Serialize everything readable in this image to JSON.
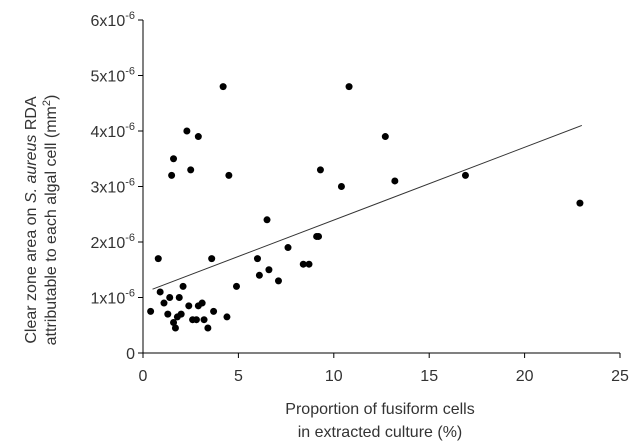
{
  "chart_data": {
    "type": "scatter",
    "title": "",
    "xlabel_lines": [
      "Proportion of fusiform cells",
      "in extracted culture (%)"
    ],
    "ylabel_line1": {
      "pre": "Clear zone area on ",
      "species": "S. aureus",
      "post": " RDA"
    },
    "ylabel_line2": {
      "pre": "attributable to each algal cell (mm",
      "sup": "2",
      "post": ")"
    },
    "xlim": [
      0,
      25
    ],
    "ylim": [
      0,
      6e-06
    ],
    "x_ticks": [
      0,
      5,
      10,
      15,
      20,
      25
    ],
    "y_ticks": [
      {
        "value": 0,
        "mant": "0",
        "exp": ""
      },
      {
        "value": 1e-06,
        "mant": "1x10",
        "exp": "-6"
      },
      {
        "value": 2e-06,
        "mant": "2x10",
        "exp": "-6"
      },
      {
        "value": 3e-06,
        "mant": "3x10",
        "exp": "-6"
      },
      {
        "value": 4e-06,
        "mant": "4x10",
        "exp": "-6"
      },
      {
        "value": 5e-06,
        "mant": "5x10",
        "exp": "-6"
      },
      {
        "value": 6e-06,
        "mant": "6x10",
        "exp": "-6"
      }
    ],
    "grid": false,
    "point_color": "#000000",
    "trend_color": "#333333",
    "trendline": {
      "x": [
        0.5,
        23
      ],
      "y": [
        1.15e-06,
        4.1e-06
      ]
    },
    "points": [
      [
        0.4,
        7.5e-07
      ],
      [
        0.8,
        1.7e-06
      ],
      [
        0.9,
        1.1e-06
      ],
      [
        1.1,
        9e-07
      ],
      [
        1.3,
        7e-07
      ],
      [
        1.4,
        1e-06
      ],
      [
        1.5,
        3.2e-06
      ],
      [
        1.6,
        3.5e-06
      ],
      [
        1.6,
        5.5e-07
      ],
      [
        1.7,
        4.5e-07
      ],
      [
        1.8,
        6.5e-07
      ],
      [
        1.9,
        1e-06
      ],
      [
        2.0,
        7e-07
      ],
      [
        2.1,
        1.2e-06
      ],
      [
        2.3,
        4e-06
      ],
      [
        2.4,
        8.5e-07
      ],
      [
        2.5,
        3.3e-06
      ],
      [
        2.6,
        6e-07
      ],
      [
        2.8,
        6e-07
      ],
      [
        2.9,
        3.9e-06
      ],
      [
        2.9,
        8.5e-07
      ],
      [
        3.1,
        9e-07
      ],
      [
        3.2,
        6e-07
      ],
      [
        3.4,
        4.5e-07
      ],
      [
        3.6,
        1.7e-06
      ],
      [
        3.7,
        7.5e-07
      ],
      [
        4.2,
        4.8e-06
      ],
      [
        4.4,
        6.5e-07
      ],
      [
        4.5,
        3.2e-06
      ],
      [
        4.9,
        1.2e-06
      ],
      [
        6.0,
        1.7e-06
      ],
      [
        6.1,
        1.4e-06
      ],
      [
        6.5,
        2.4e-06
      ],
      [
        6.6,
        1.5e-06
      ],
      [
        7.1,
        1.3e-06
      ],
      [
        7.6,
        1.9e-06
      ],
      [
        8.4,
        1.6e-06
      ],
      [
        8.7,
        1.6e-06
      ],
      [
        9.1,
        2.1e-06
      ],
      [
        9.2,
        2.1e-06
      ],
      [
        9.3,
        3.3e-06
      ],
      [
        10.4,
        3e-06
      ],
      [
        10.8,
        4.8e-06
      ],
      [
        12.7,
        3.9e-06
      ],
      [
        13.2,
        3.1e-06
      ],
      [
        16.9,
        3.2e-06
      ],
      [
        22.9,
        2.7e-06
      ]
    ]
  }
}
